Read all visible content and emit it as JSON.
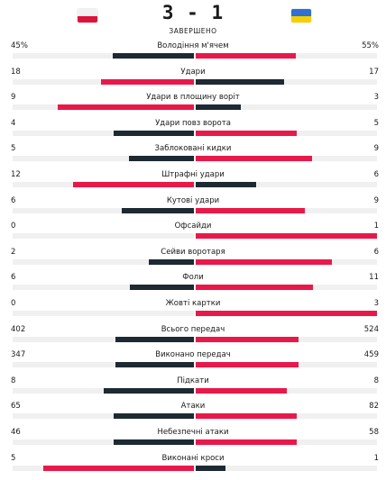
{
  "match": {
    "score": "3 - 1",
    "status": "ЗАВЕРШЕНО",
    "home_flag": {
      "name": "poland-flag-icon",
      "top": "#f2f2f2",
      "bottom": "#dc143c"
    },
    "away_flag": {
      "name": "ukraine-flag-icon",
      "top": "#2f6fd6",
      "bottom": "#f5d000"
    }
  },
  "colors": {
    "dark": "#1d2a33",
    "red": "#e8194a",
    "track": "#f0f0f0"
  },
  "stats": [
    {
      "label": "Володіння м'ячем",
      "home": "45%",
      "away": "55%",
      "home_num": 45,
      "away_num": 55
    },
    {
      "label": "Удари",
      "home": "18",
      "away": "17",
      "home_num": 18,
      "away_num": 17
    },
    {
      "label": "Удари в площину воріт",
      "home": "9",
      "away": "3",
      "home_num": 9,
      "away_num": 3
    },
    {
      "label": "Удари повз ворота",
      "home": "4",
      "away": "5",
      "home_num": 4,
      "away_num": 5
    },
    {
      "label": "Заблоковані кидки",
      "home": "5",
      "away": "9",
      "home_num": 5,
      "away_num": 9
    },
    {
      "label": "Штрафні удари",
      "home": "12",
      "away": "6",
      "home_num": 12,
      "away_num": 6
    },
    {
      "label": "Кутові удари",
      "home": "6",
      "away": "9",
      "home_num": 6,
      "away_num": 9
    },
    {
      "label": "Офсайди",
      "home": "0",
      "away": "1",
      "home_num": 0,
      "away_num": 1
    },
    {
      "label": "Сейви воротаря",
      "home": "2",
      "away": "6",
      "home_num": 2,
      "away_num": 6
    },
    {
      "label": "Фоли",
      "home": "6",
      "away": "11",
      "home_num": 6,
      "away_num": 11
    },
    {
      "label": "Жовті картки",
      "home": "0",
      "away": "3",
      "home_num": 0,
      "away_num": 3
    },
    {
      "label": "Всього передач",
      "home": "402",
      "away": "524",
      "home_num": 402,
      "away_num": 524
    },
    {
      "label": "Виконано передач",
      "home": "347",
      "away": "459",
      "home_num": 347,
      "away_num": 459
    },
    {
      "label": "Підкати",
      "home": "8",
      "away": "8",
      "home_num": 8,
      "away_num": 8
    },
    {
      "label": "Атаки",
      "home": "65",
      "away": "82",
      "home_num": 65,
      "away_num": 82
    },
    {
      "label": "Небезпечні атаки",
      "home": "46",
      "away": "58",
      "home_num": 46,
      "away_num": 58
    },
    {
      "label": "Виконані кроси",
      "home": "5",
      "away": "1",
      "home_num": 5,
      "away_num": 1
    }
  ]
}
